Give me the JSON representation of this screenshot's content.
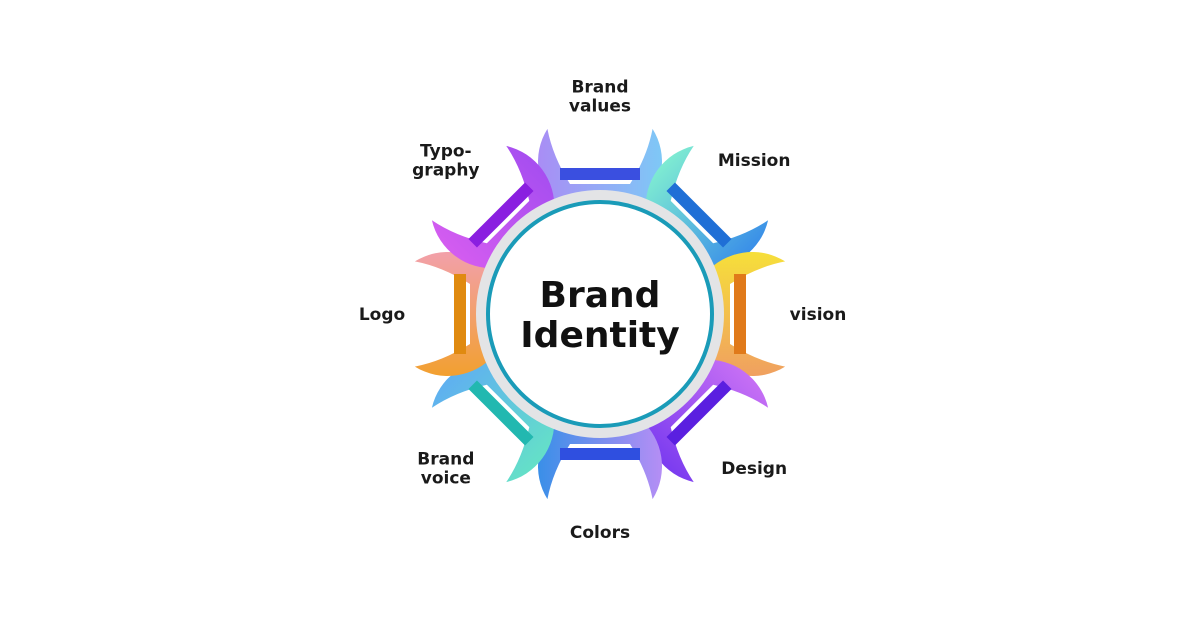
{
  "center": {
    "title_lines": [
      "Brand",
      "Identity"
    ],
    "ring_color": "#1a9bb8"
  },
  "petals": [
    {
      "id": "brand-values",
      "lines": [
        "Brand",
        "values"
      ],
      "color_start": "#7ec8f6",
      "color_end": "#a98df5",
      "band_color": "#3a4fe0"
    },
    {
      "id": "mission",
      "lines": [
        "Mission"
      ],
      "color_start": "#3a8fe8",
      "color_end": "#7eebd2",
      "band_color": "#1f6fd6"
    },
    {
      "id": "vision",
      "lines": [
        "vision"
      ],
      "color_start": "#f0a060",
      "color_end": "#f6df3a",
      "band_color": "#e07a1a"
    },
    {
      "id": "design",
      "lines": [
        "Design"
      ],
      "color_start": "#7b3cf0",
      "color_end": "#c66ff4",
      "band_color": "#5a1fe0"
    },
    {
      "id": "colors",
      "lines": [
        "Colors"
      ],
      "color_start": "#3a8fe8",
      "color_end": "#b58ef5",
      "band_color": "#2f4fe0"
    },
    {
      "id": "brand-voice",
      "lines": [
        "Brand",
        "voice"
      ],
      "color_start": "#5fb0f0",
      "color_end": "#64e0c8",
      "band_color": "#22b8b0"
    },
    {
      "id": "logo",
      "lines": [
        "Logo"
      ],
      "color_start": "#f2a0aa",
      "color_end": "#f2a030",
      "band_color": "#e08a10"
    },
    {
      "id": "typography",
      "lines": [
        "Typo-",
        "graphy"
      ],
      "color_start": "#a74ef0",
      "color_end": "#d35cf0",
      "band_color": "#8a1fe0"
    }
  ]
}
